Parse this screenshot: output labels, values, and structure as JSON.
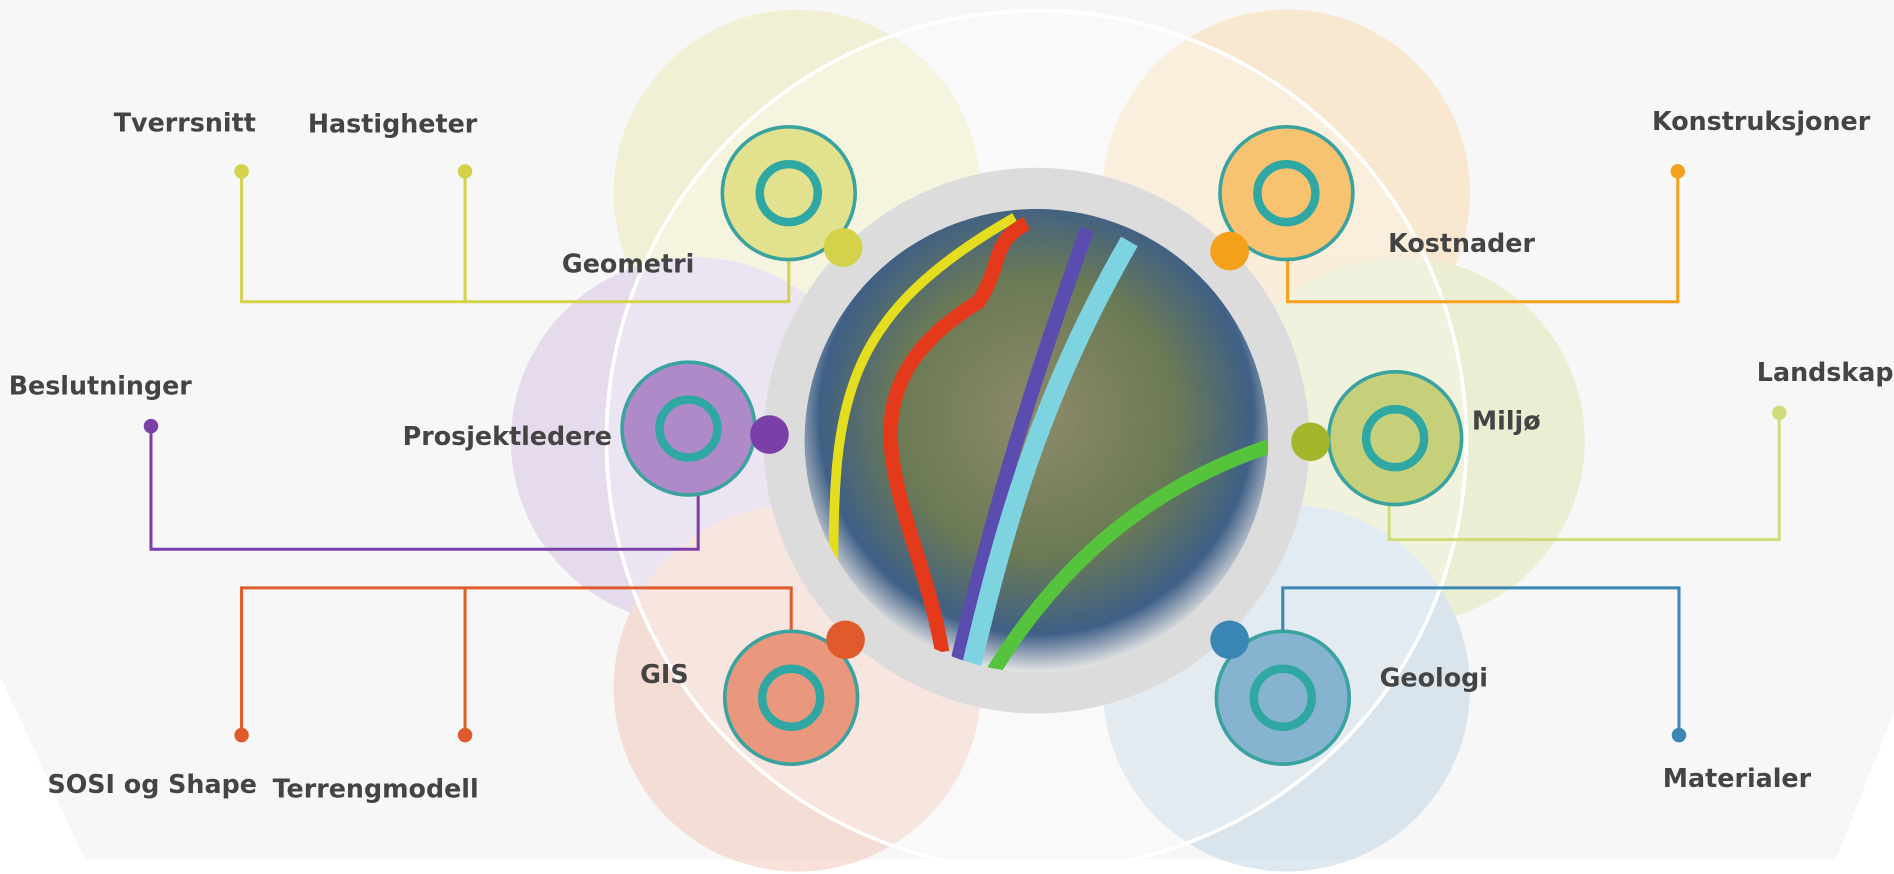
{
  "hubs": [
    {
      "label": "Geometri",
      "leaves": [
        "Tverrsnitt",
        "Hastigheter"
      ]
    },
    {
      "label": "Prosjektledere",
      "leaves": [
        "Beslutninger"
      ]
    },
    {
      "label": "GIS",
      "leaves": [
        "SOSI og Shape",
        "Terrengmodell"
      ]
    },
    {
      "label": "Kostnader",
      "leaves": [
        "Konstruksjoner"
      ]
    },
    {
      "label": "Miljø",
      "leaves": [
        "Landskap"
      ]
    },
    {
      "label": "Geologi",
      "leaves": [
        "Materialer"
      ]
    }
  ]
}
